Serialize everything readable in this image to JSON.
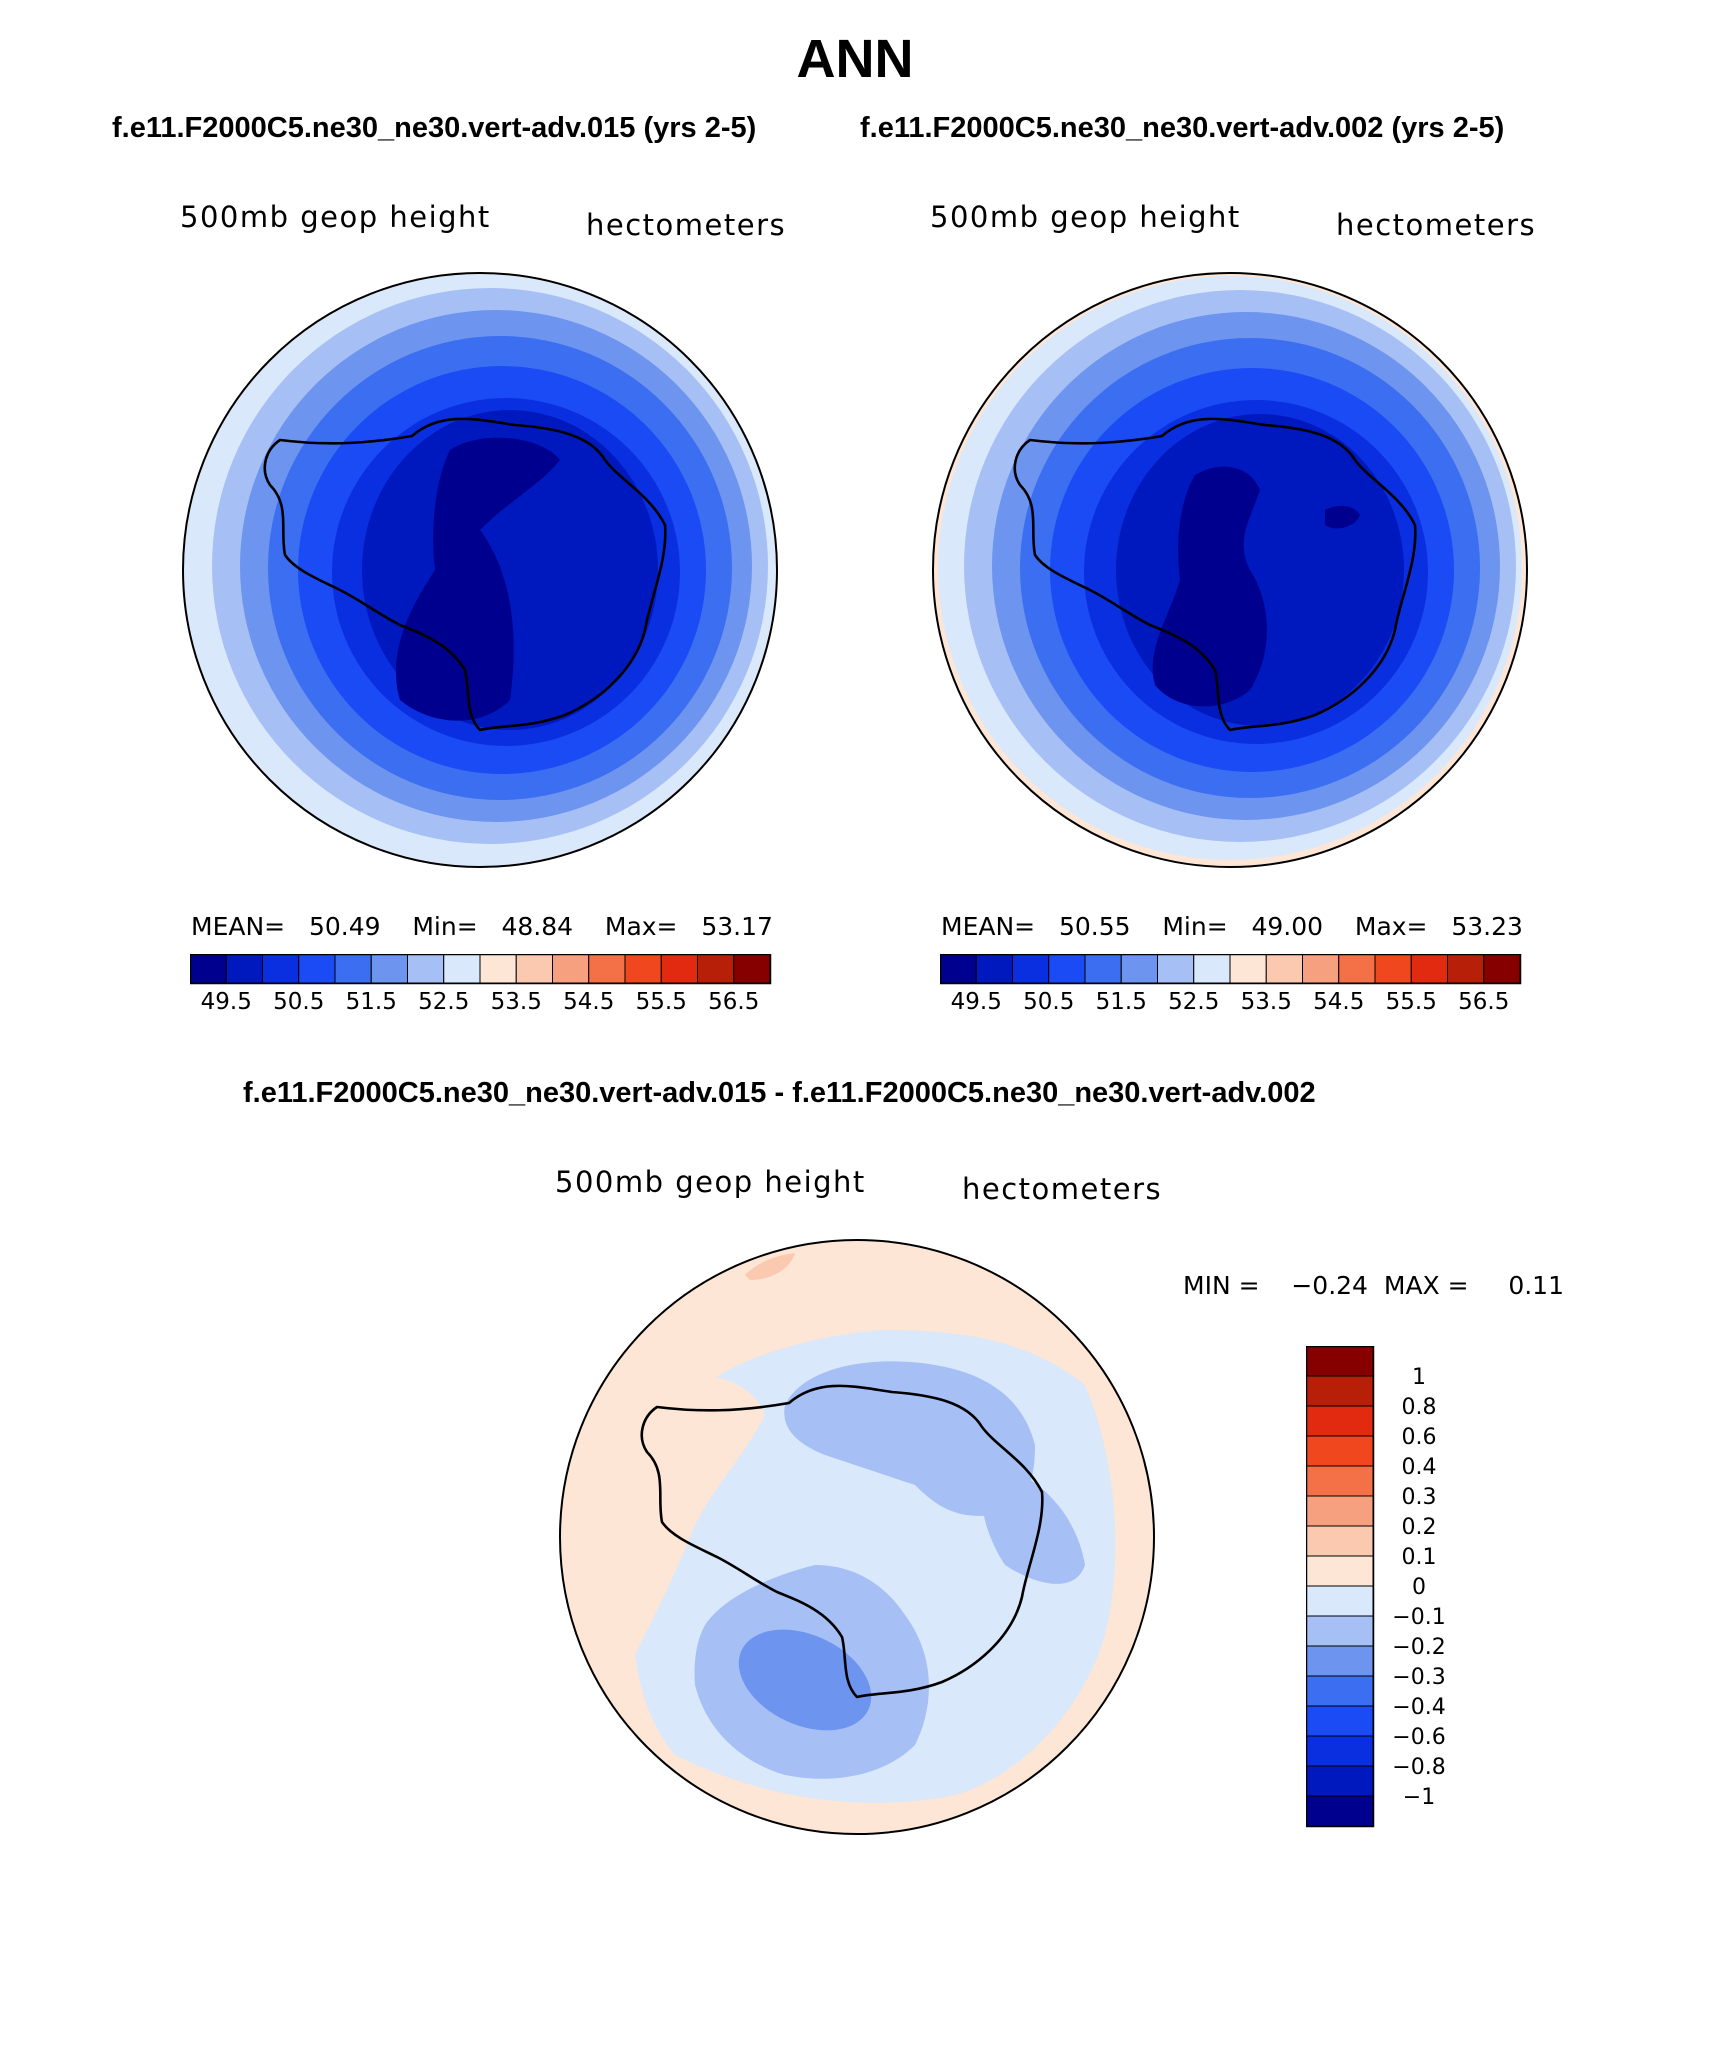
{
  "title": "ANN",
  "header_left": "f.e11.F2000C5.ne30_ne30.vert-adv.015 (yrs 2-5)",
  "header_right": "f.e11.F2000C5.ne30_ne30.vert-adv.002 (yrs 2-5)",
  "panels": [
    {
      "variable": "500mb  geop  height",
      "units": "hectometers",
      "stats": {
        "mean_label": "MEAN=",
        "mean": "50.49",
        "min_label": "Min=",
        "min": "48.84",
        "max_label": "Max=",
        "max": "53.17"
      }
    },
    {
      "variable": "500mb  geop  height",
      "units": "hectometers",
      "stats": {
        "mean_label": "MEAN=",
        "mean": "50.55",
        "min_label": "Min=",
        "min": "49.00",
        "max_label": "Max=",
        "max": "53.23"
      }
    }
  ],
  "diff_title": "f.e11.F2000C5.ne30_ne30.vert-adv.015 - f.e11.F2000C5.ne30_ne30.vert-adv.002",
  "diff_panel": {
    "variable": "500mb  geop  height",
    "units": "hectometers",
    "min_label": "MIN =",
    "min": "−0.24",
    "max_label": "MAX =",
    "max": "0.11"
  },
  "colorbar_top": {
    "colors": [
      "#00008f",
      "#0019bf",
      "#0a2fe0",
      "#1a4bf4",
      "#3b6ef0",
      "#6d94ee",
      "#a6c0f5",
      "#d9e8fa",
      "#fde6d6",
      "#fbc8b0",
      "#f7a080",
      "#f47148",
      "#f0471e",
      "#e12a10",
      "#b81f08",
      "#860000"
    ],
    "tick_labels": [
      "49.5",
      "50.5",
      "51.5",
      "52.5",
      "53.5",
      "54.5",
      "55.5",
      "56.5"
    ]
  },
  "colorbar_diff": {
    "colors": [
      "#860000",
      "#b81f08",
      "#e12a10",
      "#f0471e",
      "#f47148",
      "#f7a080",
      "#fbc8b0",
      "#fde6d6",
      "#d9e8fa",
      "#a6c0f5",
      "#6d94ee",
      "#3b6ef0",
      "#1a4bf4",
      "#0a2fe0",
      "#0019bf",
      "#00008f"
    ],
    "tick_labels": [
      "1",
      "0.8",
      "0.6",
      "0.4",
      "0.3",
      "0.2",
      "0.1",
      "0",
      "−0.1",
      "−0.2",
      "−0.3",
      "−0.4",
      "−0.6",
      "−0.8",
      "−1"
    ]
  }
}
